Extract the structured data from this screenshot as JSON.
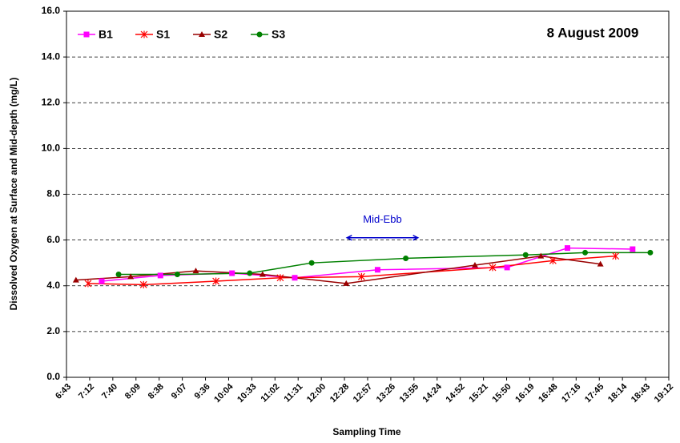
{
  "chart_data": {
    "type": "line",
    "title": "8 August 2009",
    "x_label": "Sampling Time",
    "y_label": "Dissolved Oxygen at Surface and Mid-depth (mg/L)",
    "xlim": [
      403.2,
      1152
    ],
    "xticks": [
      {
        "value": 403.2,
        "label": "6:43"
      },
      {
        "value": 432,
        "label": "7:12"
      },
      {
        "value": 460.8,
        "label": "7:40"
      },
      {
        "value": 489.6,
        "label": "8:09"
      },
      {
        "value": 518.4,
        "label": "8:38"
      },
      {
        "value": 547.2,
        "label": "9:07"
      },
      {
        "value": 576,
        "label": "9:36"
      },
      {
        "value": 604.8,
        "label": "10:04"
      },
      {
        "value": 633.6,
        "label": "10:33"
      },
      {
        "value": 662.4,
        "label": "11:02"
      },
      {
        "value": 691.2,
        "label": "11:31"
      },
      {
        "value": 720,
        "label": "12:00"
      },
      {
        "value": 748.8,
        "label": "12:28"
      },
      {
        "value": 777.6,
        "label": "12:57"
      },
      {
        "value": 806.4,
        "label": "13:26"
      },
      {
        "value": 835.2,
        "label": "13:55"
      },
      {
        "value": 864,
        "label": "14:24"
      },
      {
        "value": 892.8,
        "label": "14:52"
      },
      {
        "value": 921.6,
        "label": "15:21"
      },
      {
        "value": 950.4,
        "label": "15:50"
      },
      {
        "value": 979.2,
        "label": "16:19"
      },
      {
        "value": 1008,
        "label": "16:48"
      },
      {
        "value": 1036.8,
        "label": "17:16"
      },
      {
        "value": 1065.6,
        "label": "17:45"
      },
      {
        "value": 1094.4,
        "label": "18:14"
      },
      {
        "value": 1123.2,
        "label": "18:43"
      },
      {
        "value": 1152,
        "label": "19:12"
      }
    ],
    "ylim": [
      0,
      16
    ],
    "yticks": [
      {
        "value": 0,
        "label": "0.0"
      },
      {
        "value": 2,
        "label": "2.0"
      },
      {
        "value": 4,
        "label": "4.0"
      },
      {
        "value": 6,
        "label": "6.0"
      },
      {
        "value": 8,
        "label": "8.0"
      },
      {
        "value": 10,
        "label": "10.0"
      },
      {
        "value": 12,
        "label": "12.0"
      },
      {
        "value": 14,
        "label": "14.0"
      },
      {
        "value": 16,
        "label": "16.0"
      }
    ],
    "grid": true,
    "legend": "top-left",
    "series": [
      {
        "name": "B1",
        "color": "#ff00ff",
        "marker": "square",
        "x": [
          447,
          520,
          609,
          687,
          790,
          951,
          1026,
          1107
        ],
        "values": [
          4.2,
          4.45,
          4.55,
          4.35,
          4.7,
          4.8,
          5.65,
          5.6
        ]
      },
      {
        "name": "S1",
        "color": "#ff0000",
        "marker": "asterisk",
        "x": [
          430,
          499,
          589,
          669,
          770,
          933,
          1008,
          1086
        ],
        "values": [
          4.1,
          4.05,
          4.2,
          4.35,
          4.4,
          4.8,
          5.1,
          5.3
        ]
      },
      {
        "name": "S2",
        "color": "#990000",
        "marker": "triangle",
        "x": [
          415,
          483,
          564,
          647,
          751,
          911,
          993,
          1067
        ],
        "values": [
          4.25,
          4.4,
          4.65,
          4.5,
          4.1,
          4.9,
          5.3,
          4.95
        ]
      },
      {
        "name": "S3",
        "color": "#008000",
        "marker": "circle",
        "x": [
          468,
          541,
          631,
          708,
          825,
          974,
          1048,
          1129
        ],
        "values": [
          4.5,
          4.5,
          4.55,
          5.0,
          5.2,
          5.35,
          5.45,
          5.45
        ]
      }
    ],
    "annotation": {
      "text": "Mid-Ebb",
      "x": [
        752,
        840
      ],
      "y": 6.1,
      "color": "#0000cc"
    }
  }
}
